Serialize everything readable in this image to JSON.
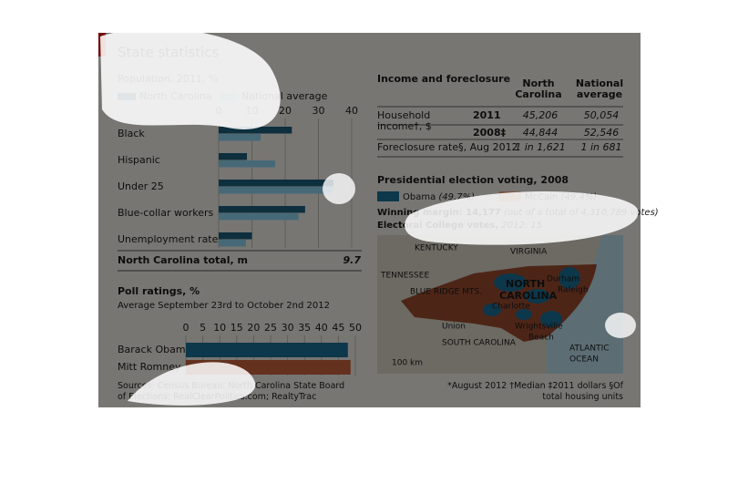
{
  "title": "State statistics",
  "chart_data": [
    {
      "type": "hbar",
      "title": "Population, 2011, %",
      "categories": [
        "Black",
        "Hispanic",
        "Under 25",
        "Blue-collar workers",
        "Unemployment rate*"
      ],
      "series": [
        {
          "name": "North Carolina",
          "color": "#1b5f7d",
          "values": [
            22,
            8.5,
            34.5,
            26,
            10
          ]
        },
        {
          "name": "National average",
          "color": "#8fd3ee",
          "values": [
            12.6,
            17,
            34,
            24,
            8.2
          ]
        }
      ],
      "xlim": [
        0,
        40
      ],
      "xticks": [
        0,
        10,
        20,
        30,
        40
      ],
      "grid": true,
      "total": {
        "label": "North Carolina total, m",
        "value": 9.7
      }
    },
    {
      "type": "hbar",
      "title": "Poll ratings, %",
      "subtitle": "Average September 23rd to October 2nd 2012",
      "categories": [
        "Barack Obama",
        "Mitt Romney"
      ],
      "values": [
        47.8,
        48.6
      ],
      "colors": [
        "#1b6f94",
        "#c8623f"
      ],
      "xlim": [
        0,
        50
      ],
      "xticks": [
        0,
        5,
        10,
        15,
        20,
        25,
        30,
        35,
        40,
        45,
        50
      ],
      "grid": true
    }
  ],
  "table": {
    "title": "Income and foreclosure",
    "columns": [
      "North Carolina",
      "National average"
    ],
    "row_label": "Household income†, $",
    "rows": [
      [
        "2011",
        "45,206",
        "50,054"
      ],
      [
        "2008‡",
        "44,844",
        "52,546"
      ]
    ],
    "foreclosure": [
      "Foreclosure rate§, Aug 2012",
      "1 in 1,621",
      "1 in 681"
    ]
  },
  "election": {
    "title": "Presidential election voting, 2008",
    "legend": [
      {
        "name": "Obama",
        "share": "(49.7%)",
        "color": "#1b6f94"
      },
      {
        "name": "McCain",
        "share": "(49.4%)",
        "color": "#f4a57a"
      }
    ],
    "margin_label": "Winning margin: 14,177",
    "margin_note": "(out of a total of 4,310,789 votes)",
    "electoral_label": "Electoral College votes,",
    "electoral_note": "2012: 15",
    "map_labels": [
      "KENTUCKY",
      "VIRGINIA",
      "TENNESSEE",
      "BLUE RIDGE MTS.",
      "NORTH",
      "CAROLINA",
      "Durham",
      "Raleigh",
      "Charlotte",
      "Union",
      "Wrightsville",
      "Beach",
      "SOUTH CAROLINA",
      "ATLANTIC",
      "OCEAN",
      "100 km"
    ]
  },
  "footnotes": "*August 2012 †Median ‡2011 dollars §Of total housing units",
  "sources": "Sources: Census Bureau; North Carolina State Board of Elections; RealClearPolitics.com; RealtyTrac"
}
